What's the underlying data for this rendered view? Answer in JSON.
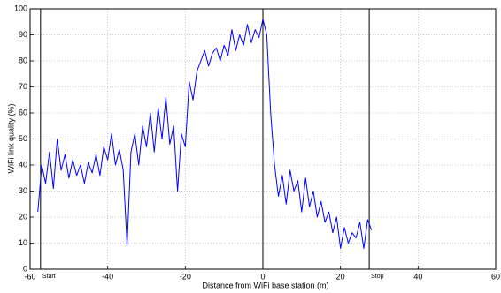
{
  "chart_data": {
    "type": "line",
    "xlabel": "Distance from WiFi base station (m)",
    "ylabel": "WiFi link quality (%)",
    "x": [
      -58,
      -57,
      -56,
      -55,
      -54,
      -53,
      -52,
      -51,
      -50,
      -49,
      -48,
      -47,
      -46,
      -45,
      -44,
      -43,
      -42,
      -41,
      -40,
      -39,
      -38,
      -37,
      -36,
      -35,
      -34,
      -33,
      -32,
      -31,
      -30,
      -29,
      -28,
      -27,
      -26,
      -25,
      -24,
      -23,
      -22,
      -21,
      -20,
      -19,
      -18,
      -17,
      -16,
      -15,
      -14,
      -13,
      -12,
      -11,
      -10,
      -9,
      -8,
      -7,
      -6,
      -5,
      -4,
      -3,
      -2,
      -1,
      0,
      1,
      2,
      3,
      4,
      5,
      6,
      7,
      8,
      9,
      10,
      11,
      12,
      13,
      14,
      15,
      16,
      17,
      18,
      19,
      20,
      21,
      22,
      23,
      24,
      25,
      26,
      27,
      28
    ],
    "series": [
      {
        "color": "#0000ff",
        "values": [
          22,
          40,
          33,
          45,
          31,
          50,
          38,
          44,
          35,
          42,
          36,
          40,
          33,
          41,
          37,
          44,
          36,
          47,
          42,
          52,
          40,
          46,
          38,
          9,
          45,
          52,
          40,
          55,
          47,
          60,
          45,
          62,
          50,
          66,
          48,
          55,
          30,
          52,
          47,
          72,
          65,
          76,
          80,
          84,
          78,
          83,
          85,
          80,
          86,
          82,
          92,
          84,
          90,
          86,
          94,
          87,
          92,
          89,
          96,
          90,
          60,
          40,
          28,
          36,
          25,
          38,
          30,
          34,
          22,
          35,
          24,
          30,
          20,
          26,
          18,
          22,
          14,
          20,
          8,
          16,
          10,
          14,
          12,
          18,
          8,
          19,
          15
        ]
      }
    ],
    "markers": [
      {
        "x": -57.3,
        "label": "Start"
      },
      {
        "x": 0
      },
      {
        "x": 27.4,
        "label": "Stop"
      }
    ],
    "xlim": [
      -60,
      60
    ],
    "xticks": [
      -60,
      -40,
      -20,
      0,
      20,
      40,
      60
    ],
    "ylim": [
      0,
      100
    ],
    "yticks": [
      0,
      10,
      20,
      30,
      40,
      50,
      60,
      70,
      80,
      90,
      100
    ],
    "grid": true
  }
}
